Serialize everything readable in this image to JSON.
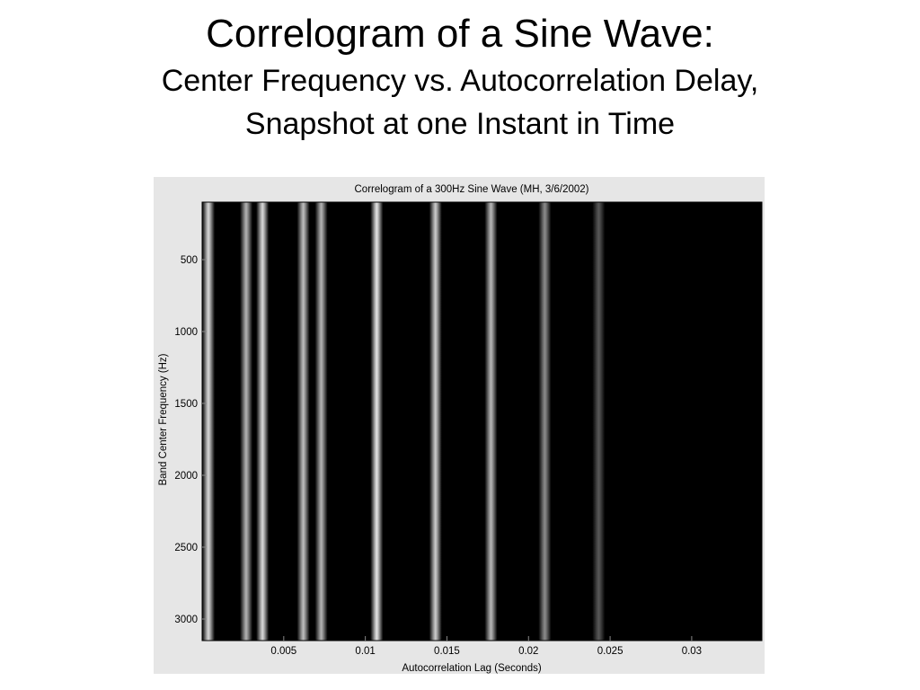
{
  "slide": {
    "title": "Correlogram of a Sine Wave:",
    "subtitle_line1": "Center Frequency vs. Autocorrelation Delay,",
    "subtitle_line2": "Snapshot at one Instant in Time"
  },
  "chart_data": {
    "type": "heatmap",
    "title": "Correlogram of a 300Hz Sine Wave (MH, 3/6/2002)",
    "xlabel": "Autocorrelation Lag (Seconds)",
    "ylabel": "Band Center Frequency (Hz)",
    "xlim": [
      0,
      0.0343
    ],
    "ylim": [
      100,
      3150
    ],
    "y_reversed": true,
    "x_ticks": [
      0.005,
      0.01,
      0.015,
      0.02,
      0.025,
      0.03
    ],
    "x_tick_labels": [
      "0.005",
      "0.01",
      "0.015",
      "0.02",
      "0.025",
      "0.03"
    ],
    "y_ticks": [
      500,
      1000,
      1500,
      2000,
      2500,
      3000
    ],
    "y_tick_labels": [
      "500",
      "1000",
      "1500",
      "2000",
      "2500",
      "3000"
    ],
    "colormap": "gray",
    "background_value": 0,
    "bands": [
      {
        "lag": 0.0002,
        "intensity": 0.85
      },
      {
        "lag": 0.0027,
        "intensity": 0.7
      },
      {
        "lag": 0.0037,
        "intensity": 0.85
      },
      {
        "lag": 0.0062,
        "intensity": 0.75
      },
      {
        "lag": 0.0073,
        "intensity": 0.7
      },
      {
        "lag": 0.0107,
        "intensity": 0.9
      },
      {
        "lag": 0.0143,
        "intensity": 0.8
      },
      {
        "lag": 0.0177,
        "intensity": 0.72
      },
      {
        "lag": 0.021,
        "intensity": 0.55
      },
      {
        "lag": 0.0243,
        "intensity": 0.35
      }
    ]
  }
}
